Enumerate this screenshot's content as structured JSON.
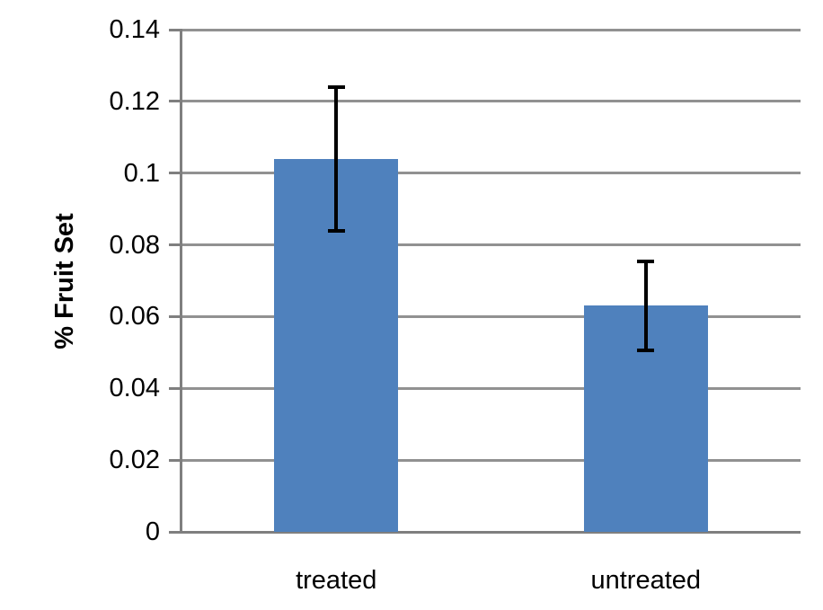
{
  "chart_data": {
    "type": "bar",
    "title": "",
    "categories": [
      "treated",
      "untreated"
    ],
    "values": [
      0.104,
      0.063
    ],
    "error_bars": {
      "plus": [
        0.02,
        0.0125
      ],
      "minus": [
        0.02,
        0.0125
      ]
    },
    "ylabel": "% Fruit Set",
    "xlabel": "",
    "ylim": [
      0,
      0.14
    ],
    "ytick_step": 0.02,
    "ytick_labels": [
      "0",
      "0.02",
      "0.04",
      "0.06",
      "0.08",
      "0.1",
      "0.12",
      "0.14"
    ],
    "grid": true,
    "legend": false,
    "colors": {
      "bar": "#4F81BD",
      "gridline": "#919191",
      "axis": "#7F7F7F",
      "error_bar": "#000000",
      "text": "#000000",
      "background": "#FFFFFF"
    }
  }
}
